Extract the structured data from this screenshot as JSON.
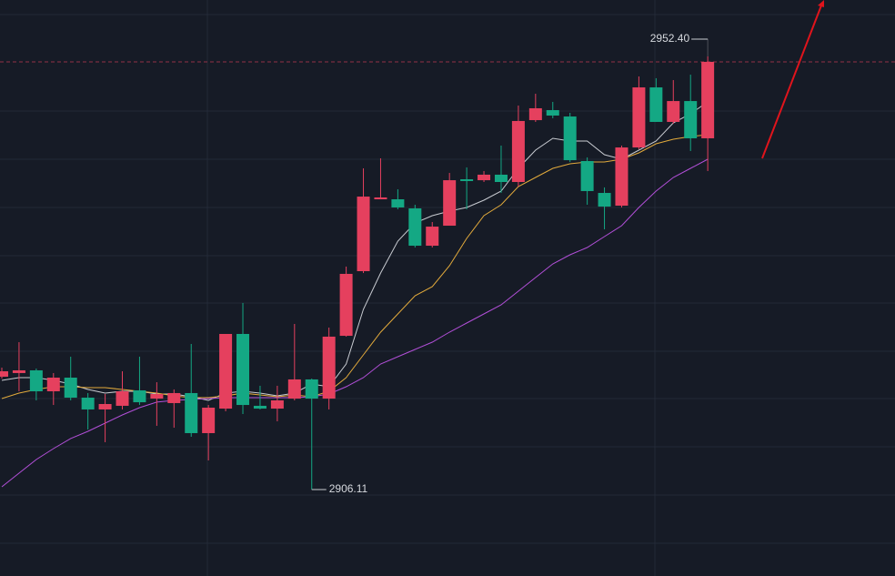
{
  "chart_data": {
    "type": "candlestick",
    "ylim": [
      2896.87,
      2958.43
    ],
    "up_color": "#e5405e",
    "down_color": "#14a884",
    "open": [
      2918.17,
      2918.56,
      2918.85,
      2916.61,
      2918.07,
      2915.93,
      2914.67,
      2915.06,
      2916.71,
      2915.83,
      2915.35,
      2916.42,
      2912.14,
      2914.76,
      2922.74,
      2915.06,
      2914.76,
      2915.83,
      2917.88,
      2915.83,
      2922.54,
      2929.45,
      2937.13,
      2937.13,
      2936.16,
      2932.17,
      2934.31,
      2939.27,
      2939.17,
      2939.76,
      2938.98,
      2945.59,
      2946.66,
      2945.98,
      2941.22,
      2937.81,
      2936.45,
      2942.67,
      2949.09,
      2945.4,
      2947.63,
      2943.65
    ],
    "high": [
      2919.14,
      2921.86,
      2919.04,
      2918.56,
      2920.31,
      2916.42,
      2916.32,
      2918.75,
      2920.31,
      2917.58,
      2916.81,
      2921.67,
      2915.15,
      2922.74,
      2926.05,
      2917.2,
      2917.2,
      2923.81,
      2917.97,
      2923.42,
      2929.94,
      2940.44,
      2941.51,
      2938.2,
      2936.55,
      2934.7,
      2939.95,
      2940.54,
      2940.15,
      2942.87,
      2947.15,
      2948.41,
      2947.54,
      2946.37,
      2941.61,
      2938.4,
      2942.87,
      2950.26,
      2950.07,
      2949.87,
      2950.45,
      2952.4
    ],
    "low": [
      2917.97,
      2916.61,
      2915.64,
      2915.15,
      2915.64,
      2912.53,
      2911.17,
      2914.67,
      2915.15,
      2912.92,
      2912.72,
      2911.75,
      2909.22,
      2914.47,
      2914.18,
      2914.67,
      2913.4,
      2915.64,
      2906.11,
      2914.67,
      2922.45,
      2929.25,
      2937.13,
      2936.06,
      2931.98,
      2931.98,
      2934.31,
      2936.06,
      2938.98,
      2937.81,
      2938.49,
      2945.4,
      2945.79,
      2941.12,
      2936.55,
      2933.92,
      2936.26,
      2942.48,
      2945.4,
      2945.2,
      2942.29,
      2940.15
    ],
    "close": [
      2918.75,
      2918.85,
      2916.61,
      2918.07,
      2915.93,
      2914.67,
      2915.25,
      2916.61,
      2915.44,
      2916.32,
      2916.42,
      2912.14,
      2914.86,
      2922.74,
      2915.15,
      2914.76,
      2915.64,
      2917.88,
      2915.83,
      2922.45,
      2929.16,
      2937.42,
      2937.33,
      2936.26,
      2932.17,
      2934.21,
      2939.17,
      2939.08,
      2939.76,
      2938.98,
      2945.5,
      2946.86,
      2946.08,
      2941.31,
      2938.01,
      2936.35,
      2942.67,
      2949.09,
      2945.4,
      2947.63,
      2943.65,
      2951.82
    ],
    "lines": [
      {
        "color": "#c9ccd2",
        "values": [
          2917.78,
          2918.07,
          2918.07,
          2917.78,
          2917.39,
          2916.81,
          2916.42,
          2916.61,
          2916.61,
          2916.32,
          2916.32,
          2916.03,
          2915.64,
          2916.42,
          2916.61,
          2916.42,
          2916.13,
          2916.42,
          2917.39,
          2917.1,
          2919.53,
          2925.36,
          2929.25,
          2932.66,
          2934.6,
          2935.38,
          2935.87,
          2936.26,
          2937.03,
          2938.01,
          2940.44,
          2942.38,
          2943.65,
          2943.36,
          2943.36,
          2941.9,
          2941.41,
          2942.38,
          2943.36,
          2945.3,
          2946.27,
          2947.54
        ]
      },
      {
        "color": "#e2aa3c",
        "values": [
          2915.83,
          2916.42,
          2916.81,
          2917.1,
          2917.1,
          2917.0,
          2917.0,
          2916.81,
          2916.61,
          2916.42,
          2916.13,
          2915.93,
          2915.93,
          2916.13,
          2916.42,
          2916.22,
          2916.03,
          2916.22,
          2916.03,
          2916.61,
          2918.07,
          2920.5,
          2922.93,
          2924.88,
          2926.82,
          2927.8,
          2930.03,
          2932.95,
          2935.38,
          2936.55,
          2938.49,
          2939.47,
          2940.44,
          2940.92,
          2941.12,
          2941.12,
          2941.41,
          2942.09,
          2943.06,
          2943.55,
          2943.84,
          2944.04
        ]
      },
      {
        "color": "#b24fd8",
        "values": [
          2906.4,
          2907.86,
          2909.32,
          2910.49,
          2911.56,
          2912.33,
          2913.21,
          2914.08,
          2914.86,
          2915.45,
          2915.64,
          2915.74,
          2915.83,
          2915.93,
          2915.93,
          2915.93,
          2915.93,
          2915.93,
          2916.03,
          2916.32,
          2917.1,
          2918.07,
          2919.53,
          2920.31,
          2921.09,
          2921.86,
          2922.93,
          2923.91,
          2924.88,
          2925.85,
          2927.31,
          2928.77,
          2930.23,
          2931.2,
          2931.98,
          2933.14,
          2934.31,
          2936.26,
          2938.01,
          2939.47,
          2940.44,
          2941.41
        ]
      }
    ],
    "high_label": "2952.40",
    "low_label": "2906.11"
  }
}
